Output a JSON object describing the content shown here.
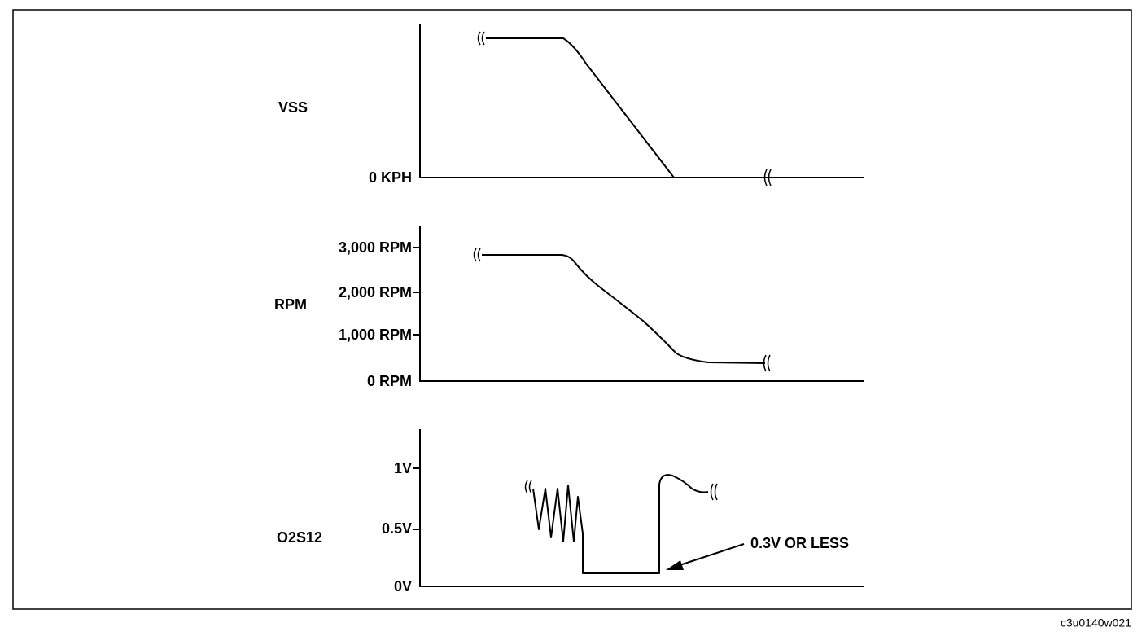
{
  "panels": [
    {
      "label": "VSS",
      "ticks": [
        "0 KPH"
      ]
    },
    {
      "label": "RPM",
      "ticks": [
        "3,000 RPM",
        "2,000 RPM",
        "1,000 RPM",
        "0 RPM"
      ]
    },
    {
      "label": "O2S12",
      "ticks": [
        "1V",
        "0.5V",
        "0V"
      ],
      "annotation": "0.3V OR LESS"
    }
  ],
  "figure_id": "c3u0140w021"
}
